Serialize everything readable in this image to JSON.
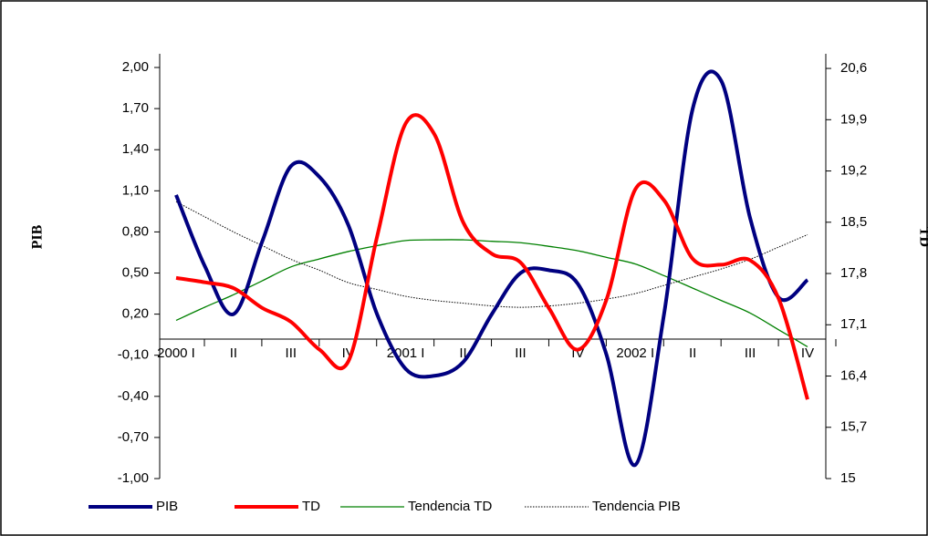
{
  "chart_data": {
    "type": "line",
    "y_label": "PIB",
    "y2_label": "TD",
    "categories": [
      "2000 I",
      null,
      "II",
      null,
      "III",
      null,
      "IV",
      null,
      "2001 I",
      null,
      "II",
      null,
      "III",
      null,
      "IV",
      null,
      "2002 I",
      null,
      "II",
      null,
      "III",
      null,
      "IV"
    ],
    "series": [
      {
        "name": "PIB",
        "color": "#000080",
        "style": "solid",
        "width": 4,
        "values": [
          1.07,
          0.55,
          0.2,
          0.73,
          1.28,
          1.2,
          0.85,
          0.2,
          -0.2,
          -0.25,
          -0.15,
          0.2,
          0.5,
          0.52,
          0.42,
          -0.1,
          -0.9,
          0.2,
          1.7,
          1.9,
          0.9,
          0.32,
          0.45
        ]
      },
      {
        "name": "TD",
        "color": "#ff0000",
        "style": "solid",
        "width": 4,
        "axis": "y2",
        "values": [
          17.74,
          17.68,
          17.6,
          17.33,
          17.14,
          16.76,
          16.6,
          18.3,
          19.85,
          19.7,
          18.5,
          18.07,
          17.95,
          17.32,
          16.76,
          17.45,
          18.95,
          18.8,
          18.0,
          17.92,
          17.98,
          17.45,
          16.08
        ]
      },
      {
        "name": "Tendencia TD",
        "color": "#008000",
        "style": "solid",
        "width": 1.3,
        "axis": "y2",
        "values": [
          17.16,
          17.34,
          17.51,
          17.7,
          17.89,
          18.0,
          18.1,
          18.18,
          18.25,
          18.26,
          18.26,
          18.24,
          18.22,
          18.17,
          18.11,
          18.02,
          17.93,
          17.77,
          17.6,
          17.43,
          17.26,
          17.03,
          16.8
        ]
      },
      {
        "name": "Tendencia PIB",
        "color": "#000000",
        "style": "dotted",
        "width": 1,
        "values": [
          1.02,
          0.91,
          0.8,
          0.7,
          0.6,
          0.52,
          0.43,
          0.38,
          0.33,
          0.3,
          0.28,
          0.26,
          0.25,
          0.26,
          0.28,
          0.31,
          0.35,
          0.41,
          0.47,
          0.53,
          0.6,
          0.69,
          0.78
        ]
      }
    ],
    "ylim": [
      -1.0,
      2.1
    ],
    "yticks": [
      {
        "value": -1.0,
        "label": "-1,00"
      },
      {
        "value": -0.7,
        "label": "-0,70"
      },
      {
        "value": -0.4,
        "label": "-0,40"
      },
      {
        "value": -0.1,
        "label": "-0,10"
      },
      {
        "value": 0.2,
        "label": "0,20"
      },
      {
        "value": 0.5,
        "label": "0,50"
      },
      {
        "value": 0.8,
        "label": "0,80"
      },
      {
        "value": 1.1,
        "label": "1,10"
      },
      {
        "value": 1.4,
        "label": "1,40"
      },
      {
        "value": 1.7,
        "label": "1,70"
      },
      {
        "value": 2.0,
        "label": "2,00"
      }
    ],
    "y2lim": [
      15,
      20.8
    ],
    "y2ticks": [
      15,
      {
        "value": 15.7,
        "label": "15,7"
      },
      {
        "value": 16.4,
        "label": "16,4"
      },
      {
        "value": 17.1,
        "label": "17,1"
      },
      {
        "value": 17.8,
        "label": "17,8"
      },
      {
        "value": 18.5,
        "label": "18,5"
      },
      {
        "value": 19.2,
        "label": "19,2"
      },
      {
        "value": 19.9,
        "label": "19,9"
      },
      {
        "value": 20.6,
        "label": "20,6"
      }
    ],
    "legend": "bottom"
  }
}
